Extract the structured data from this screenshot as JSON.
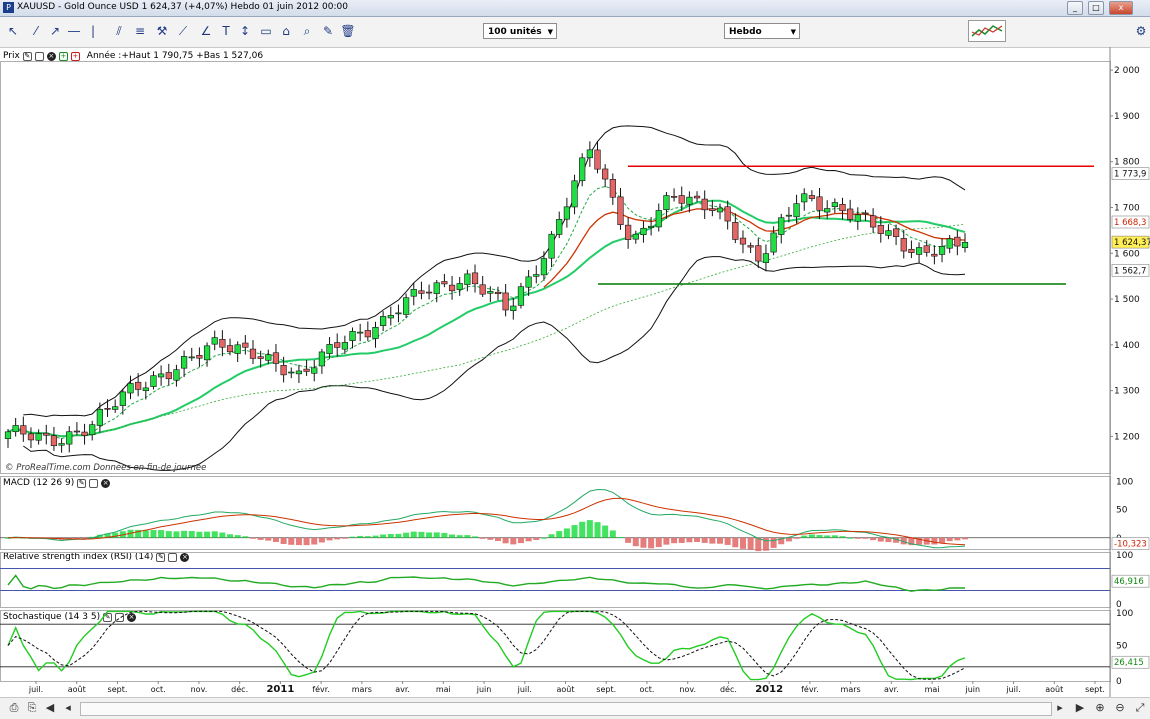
{
  "window": {
    "title": "XAUUSD - Gold Ounce USD   1 624,37 (+4,07%)   Hebdo  01 juin 2012 00:00"
  },
  "toolbar": {
    "units_select": "100 unités",
    "period_select": "Hebdo"
  },
  "price_panel": {
    "label": "Prix",
    "info": "Année :+Haut 1 790,75 +Bas 1 527,06",
    "watermark": "© ProRealTime.com  Données en fin-de journée",
    "y_ticks": [
      "2 000",
      "1 900",
      "1 800",
      "1 700",
      "1 600",
      "1 500",
      "1 400",
      "1 300",
      "1 200"
    ],
    "markers": {
      "upper_band": "1 773,9",
      "ema_red": "1 668,3",
      "last_price": "1 624,37",
      "lower_band": "1 562,7"
    }
  },
  "macd_panel": {
    "label": "MACD (12 26 9)",
    "y_ticks": [
      "100",
      "50",
      "0"
    ],
    "value": "-10,323"
  },
  "rsi_panel": {
    "label": "Relative strength index (RSI) (14)",
    "y_ticks": [
      "100",
      "0"
    ],
    "value": "46,916"
  },
  "stoch_panel": {
    "label": "Stochastique (14 3 5)",
    "y_ticks": [
      "100",
      "50",
      "0"
    ],
    "value": "26,415"
  },
  "x_axis": {
    "labels": [
      "juil.",
      "août",
      "sept.",
      "oct.",
      "nov.",
      "déc.",
      "2011",
      "févr.",
      "mars",
      "avr.",
      "mai",
      "juin",
      "juil.",
      "août",
      "sept.",
      "oct.",
      "nov.",
      "déc.",
      "2012",
      "févr.",
      "mars",
      "avr.",
      "mai",
      "juin",
      "juil.",
      "août",
      "sept."
    ],
    "bold": [
      "2011",
      "2012"
    ]
  },
  "colors": {
    "up": "#22dd44",
    "down": "#e26666",
    "resistance": "#e60000",
    "support": "#007a00",
    "ema_fast": "#22cc66",
    "ema_slow": "#cc3300"
  },
  "chart_data": {
    "type": "line",
    "title": "XAUUSD - Gold Ounce USD",
    "xlabel": "",
    "ylabel": "",
    "ylim": [
      1120,
      2020
    ],
    "x": [
      "2010-07-02",
      "2010-07-30",
      "2010-08-27",
      "2010-10-01",
      "2010-10-29",
      "2010-12-03",
      "2010-12-31",
      "2011-01-28",
      "2011-03-04",
      "2011-04-01",
      "2011-04-29",
      "2011-06-03",
      "2011-07-01",
      "2011-07-29",
      "2011-09-02",
      "2011-09-30",
      "2011-10-28",
      "2011-12-02",
      "2011-12-30",
      "2012-02-03",
      "2012-03-02",
      "2012-03-30",
      "2012-05-04",
      "2012-06-01"
    ],
    "series": [
      {
        "values": [
          1210,
          1185,
          1230,
          1300,
          1355,
          1395,
          1390,
          1320,
          1420,
          1440,
          1530,
          1540,
          1480,
          1615,
          1830,
          1625,
          1720,
          1710,
          1570,
          1735,
          1685,
          1660,
          1590,
          1624
        ]
      }
    ],
    "levels": {
      "resistance": 1790,
      "support": 1533
    },
    "macd": {
      "ylim": [
        -20,
        110
      ],
      "ticks": [
        100,
        50,
        0
      ],
      "last": -10.323
    },
    "rsi": {
      "ylim": [
        0,
        100
      ],
      "ticks": [
        100,
        0
      ],
      "last": 46.916
    },
    "stochastic": {
      "ylim": [
        0,
        100
      ],
      "ticks": [
        100,
        50,
        0
      ],
      "last": 26.415
    }
  }
}
